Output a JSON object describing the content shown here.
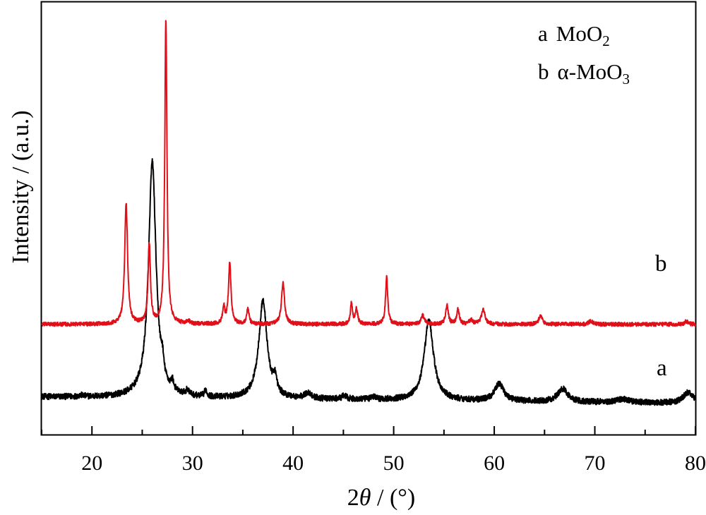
{
  "chart_data": {
    "type": "line",
    "xlabel": "2θ / (°)",
    "ylabel": "Intensity / (a.u.)",
    "xlim": [
      15,
      80
    ],
    "xticks": [
      20,
      30,
      40,
      50,
      60,
      70,
      80
    ],
    "y_ticks_shown": false,
    "grid": false,
    "legend_position": "top-right",
    "legend": [
      {
        "prefix": "a",
        "text": "MoO",
        "sub": "2"
      },
      {
        "prefix": "b",
        "text": "α-MoO",
        "sub": "3"
      }
    ],
    "series": [
      {
        "name": "a",
        "label": "a",
        "color": "#000000",
        "baseline": 8.7,
        "peaks": [
          [
            18.9,
            0.3,
            0.3
          ],
          [
            26.0,
            54.5,
            0.45
          ],
          [
            27.0,
            3.5,
            0.15
          ],
          [
            28.0,
            2.0,
            0.15
          ],
          [
            29.5,
            1.2,
            0.2
          ],
          [
            31.3,
            1.5,
            0.15
          ],
          [
            37.0,
            22.5,
            0.5
          ],
          [
            38.2,
            3.5,
            0.2
          ],
          [
            41.5,
            1.3,
            0.4
          ],
          [
            45.1,
            0.8,
            0.3
          ],
          [
            48.0,
            0.6,
            0.3
          ],
          [
            53.5,
            18.5,
            0.55
          ],
          [
            60.5,
            4.0,
            0.55
          ],
          [
            66.8,
            3.0,
            0.6
          ],
          [
            72.8,
            0.8,
            0.8
          ],
          [
            79.3,
            2.5,
            0.6
          ]
        ]
      },
      {
        "name": "b",
        "label": "b",
        "color": "#e0101a",
        "baseline": 25.5,
        "peaks": [
          [
            23.4,
            28.0,
            0.17
          ],
          [
            25.7,
            18.5,
            0.14
          ],
          [
            27.35,
            70.5,
            0.13
          ],
          [
            29.6,
            0.6,
            0.2
          ],
          [
            33.1,
            4.0,
            0.12
          ],
          [
            33.7,
            14.0,
            0.15
          ],
          [
            35.5,
            3.5,
            0.14
          ],
          [
            39.0,
            9.5,
            0.18
          ],
          [
            45.8,
            5.0,
            0.12
          ],
          [
            46.3,
            3.5,
            0.14
          ],
          [
            49.3,
            11.0,
            0.13
          ],
          [
            52.9,
            2.0,
            0.2
          ],
          [
            55.3,
            4.5,
            0.15
          ],
          [
            56.4,
            3.5,
            0.14
          ],
          [
            57.7,
            1.0,
            0.2
          ],
          [
            58.9,
            3.5,
            0.2
          ],
          [
            64.6,
            2.0,
            0.2
          ],
          [
            69.6,
            0.8,
            0.2
          ],
          [
            79.1,
            0.7,
            0.2
          ]
        ]
      }
    ]
  }
}
